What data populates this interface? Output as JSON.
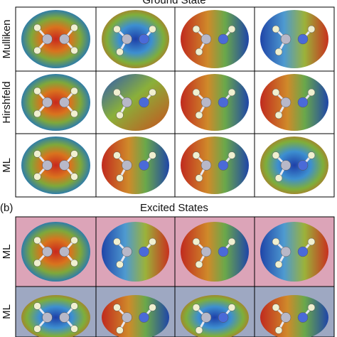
{
  "panel_a": {
    "title": "Ground State",
    "rows": [
      "Mulliken",
      "Hirshfeld",
      "ML"
    ]
  },
  "panel_b": {
    "label": "(b)",
    "title": "Excited States",
    "rows": [
      "ML",
      "ML"
    ]
  }
}
